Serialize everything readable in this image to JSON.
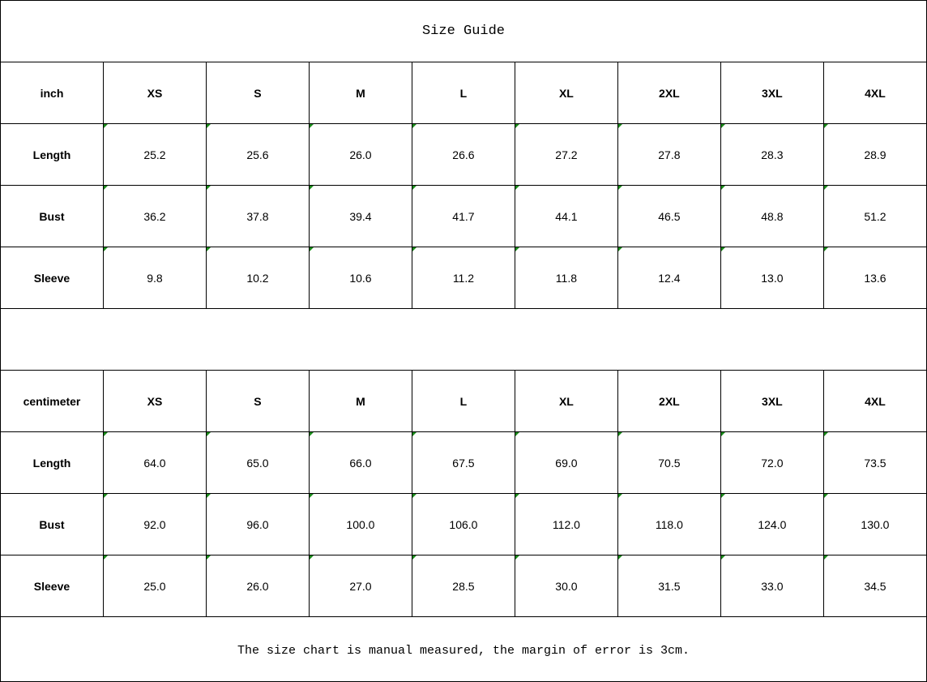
{
  "title": "Size Guide",
  "sizes": [
    "XS",
    "S",
    "M",
    "L",
    "XL",
    "2XL",
    "3XL",
    "4XL"
  ],
  "tables": [
    {
      "unit": "inch",
      "rows": [
        {
          "label": "Length",
          "values": [
            "25.2",
            "25.6",
            "26.0",
            "26.6",
            "27.2",
            "27.8",
            "28.3",
            "28.9"
          ]
        },
        {
          "label": "Bust",
          "values": [
            "36.2",
            "37.8",
            "39.4",
            "41.7",
            "44.1",
            "46.5",
            "48.8",
            "51.2"
          ]
        },
        {
          "label": "Sleeve",
          "values": [
            "9.8",
            "10.2",
            "10.6",
            "11.2",
            "11.8",
            "12.4",
            "13.0",
            "13.6"
          ]
        }
      ]
    },
    {
      "unit": "centimeter",
      "rows": [
        {
          "label": "Length",
          "values": [
            "64.0",
            "65.0",
            "66.0",
            "67.5",
            "69.0",
            "70.5",
            "72.0",
            "73.5"
          ]
        },
        {
          "label": "Bust",
          "values": [
            "92.0",
            "96.0",
            "100.0",
            "106.0",
            "112.0",
            "118.0",
            "124.0",
            "130.0"
          ]
        },
        {
          "label": "Sleeve",
          "values": [
            "25.0",
            "26.0",
            "27.0",
            "28.5",
            "30.0",
            "31.5",
            "33.0",
            "34.5"
          ]
        }
      ]
    }
  ],
  "note": "The size chart is manual measured, the margin of error is 3cm.",
  "colors": {
    "text_marker": "#1a8a1a",
    "border": "#000000"
  }
}
